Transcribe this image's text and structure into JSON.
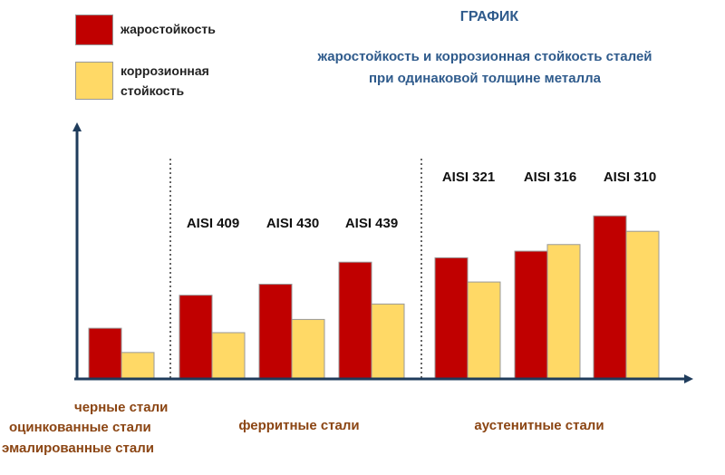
{
  "legend": {
    "heat_label": "жаростойкость",
    "corrosion_label_line1": "коррозионная",
    "corrosion_label_line2": "стойкость"
  },
  "header": {
    "title": "ГРАФИК",
    "subtitle_line1": "жаростойкость и коррозионная стойкость сталей",
    "subtitle_line2": "при одинаковой толщине металла"
  },
  "groups": {
    "black_line1": "черные стали",
    "black_line2": "оцинкованные стали",
    "black_line3": "эмалированные стали",
    "ferritic": "ферритные стали",
    "austenitic": "аустенитные стали"
  },
  "colors": {
    "heat": "#c00000",
    "corrosion": "#ffd966",
    "axis": "#1f3c5c",
    "label_brown": "#8b4513",
    "title_blue": "#2f5b8c"
  },
  "chart_data": {
    "type": "bar",
    "title": "ГРАФИК",
    "subtitle": "жаростойкость и коррозионная стойкость сталей при одинаковой толщине металла",
    "xlabel": "",
    "ylabel": "",
    "ylim": [
      0,
      10
    ],
    "categories": [
      "черные стали",
      "AISI 409",
      "AISI 430",
      "AISI 439",
      "AISI 321",
      "AISI 316",
      "AISI 310"
    ],
    "series": [
      {
        "name": "жаростойкость",
        "values": [
          2.3,
          3.8,
          4.3,
          5.3,
          5.5,
          5.8,
          7.4
        ]
      },
      {
        "name": "коррозионная стойкость",
        "values": [
          1.2,
          2.1,
          2.7,
          3.4,
          4.4,
          6.1,
          6.7
        ]
      }
    ]
  }
}
